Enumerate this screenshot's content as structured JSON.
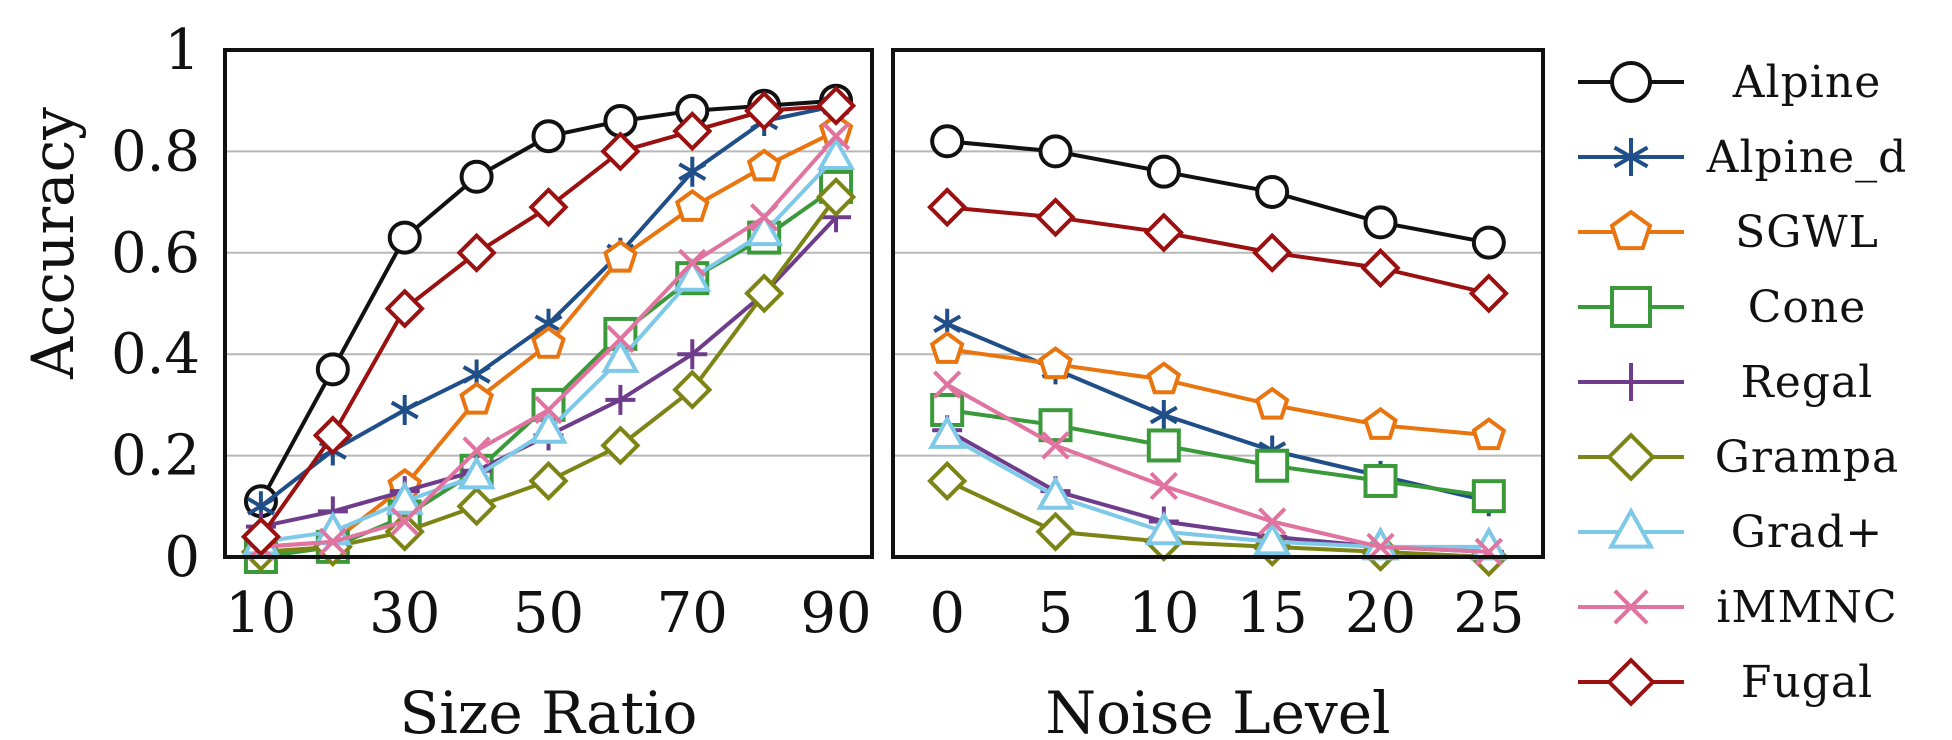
{
  "figure": {
    "ylabel": "Accuracy",
    "legend_position": "right"
  },
  "legend": [
    {
      "label": "Alpine",
      "color": "#111111",
      "marker": "circle"
    },
    {
      "label": "Alpine_d",
      "color": "#1F4E89",
      "marker": "asterisk"
    },
    {
      "label": "SGWL",
      "color": "#E8750F",
      "marker": "pentagon"
    },
    {
      "label": "Cone",
      "color": "#3A9A3A",
      "marker": "square"
    },
    {
      "label": "Regal",
      "color": "#6F3C8C",
      "marker": "plus"
    },
    {
      "label": "Grampa",
      "color": "#7D8416",
      "marker": "diamond"
    },
    {
      "label": "Grad+",
      "color": "#7EC8E8",
      "marker": "triangle"
    },
    {
      "label": "iMMNC",
      "color": "#E0739F",
      "marker": "cross"
    },
    {
      "label": "Fugal",
      "color": "#9B1010",
      "marker": "diamond"
    }
  ],
  "chart_data": [
    {
      "type": "line",
      "xlabel": "Size Ratio",
      "ylabel": "Accuracy",
      "x": [
        10,
        20,
        30,
        40,
        50,
        60,
        70,
        80,
        90
      ],
      "x_ticks": [
        "10",
        "30",
        "50",
        "70",
        "90"
      ],
      "xlim": [
        5,
        95
      ],
      "ylim": [
        0,
        1
      ],
      "y_ticks": [
        "0",
        "0.2",
        "0.4",
        "0.6",
        "0.8",
        "1"
      ],
      "grid": true,
      "series": [
        {
          "name": "Alpine",
          "values": [
            0.11,
            0.37,
            0.63,
            0.75,
            0.83,
            0.86,
            0.88,
            0.89,
            0.9
          ]
        },
        {
          "name": "Alpine_d",
          "values": [
            0.1,
            0.21,
            0.29,
            0.36,
            0.46,
            0.6,
            0.76,
            0.86,
            0.89
          ]
        },
        {
          "name": "SGWL",
          "values": [
            0.02,
            0.03,
            0.14,
            0.31,
            0.42,
            0.59,
            0.69,
            0.77,
            0.84
          ]
        },
        {
          "name": "Cone",
          "values": [
            0.0,
            0.02,
            0.08,
            0.17,
            0.3,
            0.44,
            0.55,
            0.63,
            0.73
          ]
        },
        {
          "name": "Regal",
          "values": [
            0.06,
            0.09,
            0.13,
            0.17,
            0.24,
            0.31,
            0.4,
            0.52,
            0.67
          ]
        },
        {
          "name": "Grampa",
          "values": [
            0.01,
            0.02,
            0.05,
            0.1,
            0.15,
            0.22,
            0.33,
            0.52,
            0.71
          ]
        },
        {
          "name": "Grad+",
          "values": [
            0.03,
            0.05,
            0.11,
            0.16,
            0.25,
            0.39,
            0.55,
            0.64,
            0.79
          ]
        },
        {
          "name": "iMMNC",
          "values": [
            0.02,
            0.03,
            0.07,
            0.21,
            0.29,
            0.43,
            0.58,
            0.67,
            0.83
          ]
        },
        {
          "name": "Fugal",
          "values": [
            0.04,
            0.24,
            0.49,
            0.6,
            0.69,
            0.8,
            0.84,
            0.88,
            0.89
          ]
        }
      ]
    },
    {
      "type": "line",
      "xlabel": "Noise Level",
      "x": [
        0,
        5,
        10,
        15,
        20,
        25
      ],
      "x_ticks": [
        "0",
        "5",
        "10",
        "15",
        "20",
        "25"
      ],
      "xlim": [
        -2.5,
        27.5
      ],
      "ylim": [
        0,
        1
      ],
      "grid": true,
      "series": [
        {
          "name": "Alpine",
          "values": [
            0.82,
            0.8,
            0.76,
            0.72,
            0.66,
            0.62
          ]
        },
        {
          "name": "Alpine_d",
          "values": [
            0.46,
            0.37,
            0.28,
            0.21,
            0.16,
            0.11
          ]
        },
        {
          "name": "SGWL",
          "values": [
            0.41,
            0.38,
            0.35,
            0.3,
            0.26,
            0.24
          ]
        },
        {
          "name": "Cone",
          "values": [
            0.29,
            0.26,
            0.22,
            0.18,
            0.15,
            0.12
          ]
        },
        {
          "name": "Regal",
          "values": [
            0.25,
            0.13,
            0.07,
            0.04,
            0.02,
            0.01
          ]
        },
        {
          "name": "Grampa",
          "values": [
            0.15,
            0.05,
            0.03,
            0.02,
            0.01,
            0.0
          ]
        },
        {
          "name": "Grad+",
          "values": [
            0.24,
            0.12,
            0.05,
            0.03,
            0.02,
            0.02
          ]
        },
        {
          "name": "iMMNC",
          "values": [
            0.34,
            0.22,
            0.14,
            0.07,
            0.02,
            0.01
          ]
        },
        {
          "name": "Fugal",
          "values": [
            0.69,
            0.67,
            0.64,
            0.6,
            0.57,
            0.52
          ]
        }
      ]
    }
  ]
}
